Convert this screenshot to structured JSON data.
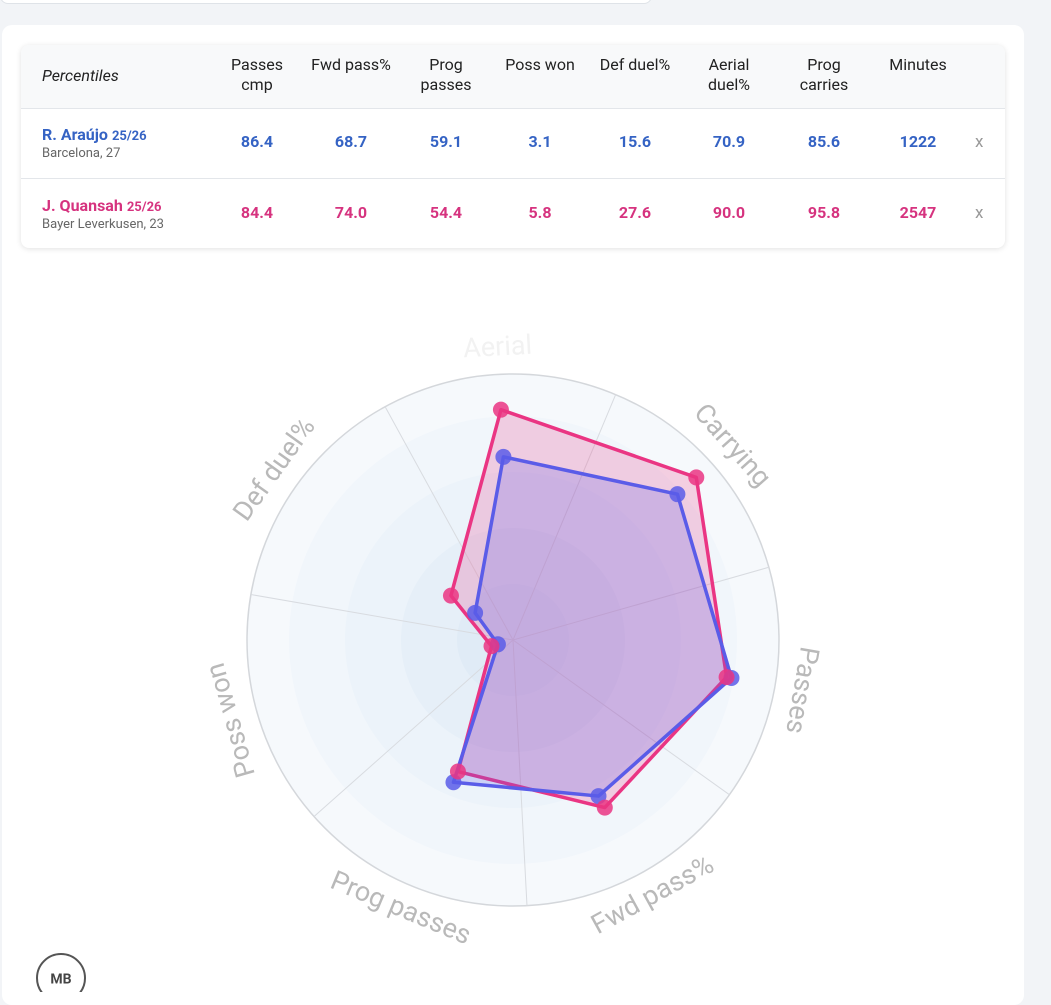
{
  "table": {
    "header": [
      "Percentiles",
      "Passes cmp",
      "Fwd pass%",
      "Prog passes",
      "Poss won",
      "Def duel%",
      "Aerial duel%",
      "Prog carries",
      "Minutes"
    ],
    "rows": [
      {
        "name": "R. Araújo",
        "season": "25/26",
        "info": "Barcelona, 27",
        "cells": [
          "86.4",
          "68.7",
          "59.1",
          "3.1",
          "15.6",
          "70.9",
          "85.6",
          "1222"
        ],
        "remove": "x",
        "color": "#3563c4"
      },
      {
        "name": "J. Quansah",
        "season": "25/26",
        "info": "Bayer Leverkusen, 23",
        "cells": [
          "84.4",
          "74.0",
          "54.4",
          "5.8",
          "27.6",
          "90.0",
          "95.8",
          "2547"
        ],
        "remove": "x",
        "color": "#d6337f"
      }
    ]
  },
  "chart_data": {
    "type": "radar",
    "categories": [
      "Aerial",
      "Carrying",
      "Passes",
      "Fwd pass%",
      "Prog passes",
      "Poss won",
      "Def duel%"
    ],
    "ylim": [
      0,
      100
    ],
    "series": [
      {
        "name": "R. Araújo",
        "color": "#5a5ce8",
        "values": [
          70.9,
          85.6,
          86.4,
          68.7,
          59.1,
          3.1,
          15.6
        ]
      },
      {
        "name": "J. Quansah",
        "color": "#ea3583",
        "values": [
          90.0,
          95.8,
          84.4,
          74.0,
          54.4,
          5.8,
          27.6
        ]
      }
    ]
  },
  "logo": "MB"
}
